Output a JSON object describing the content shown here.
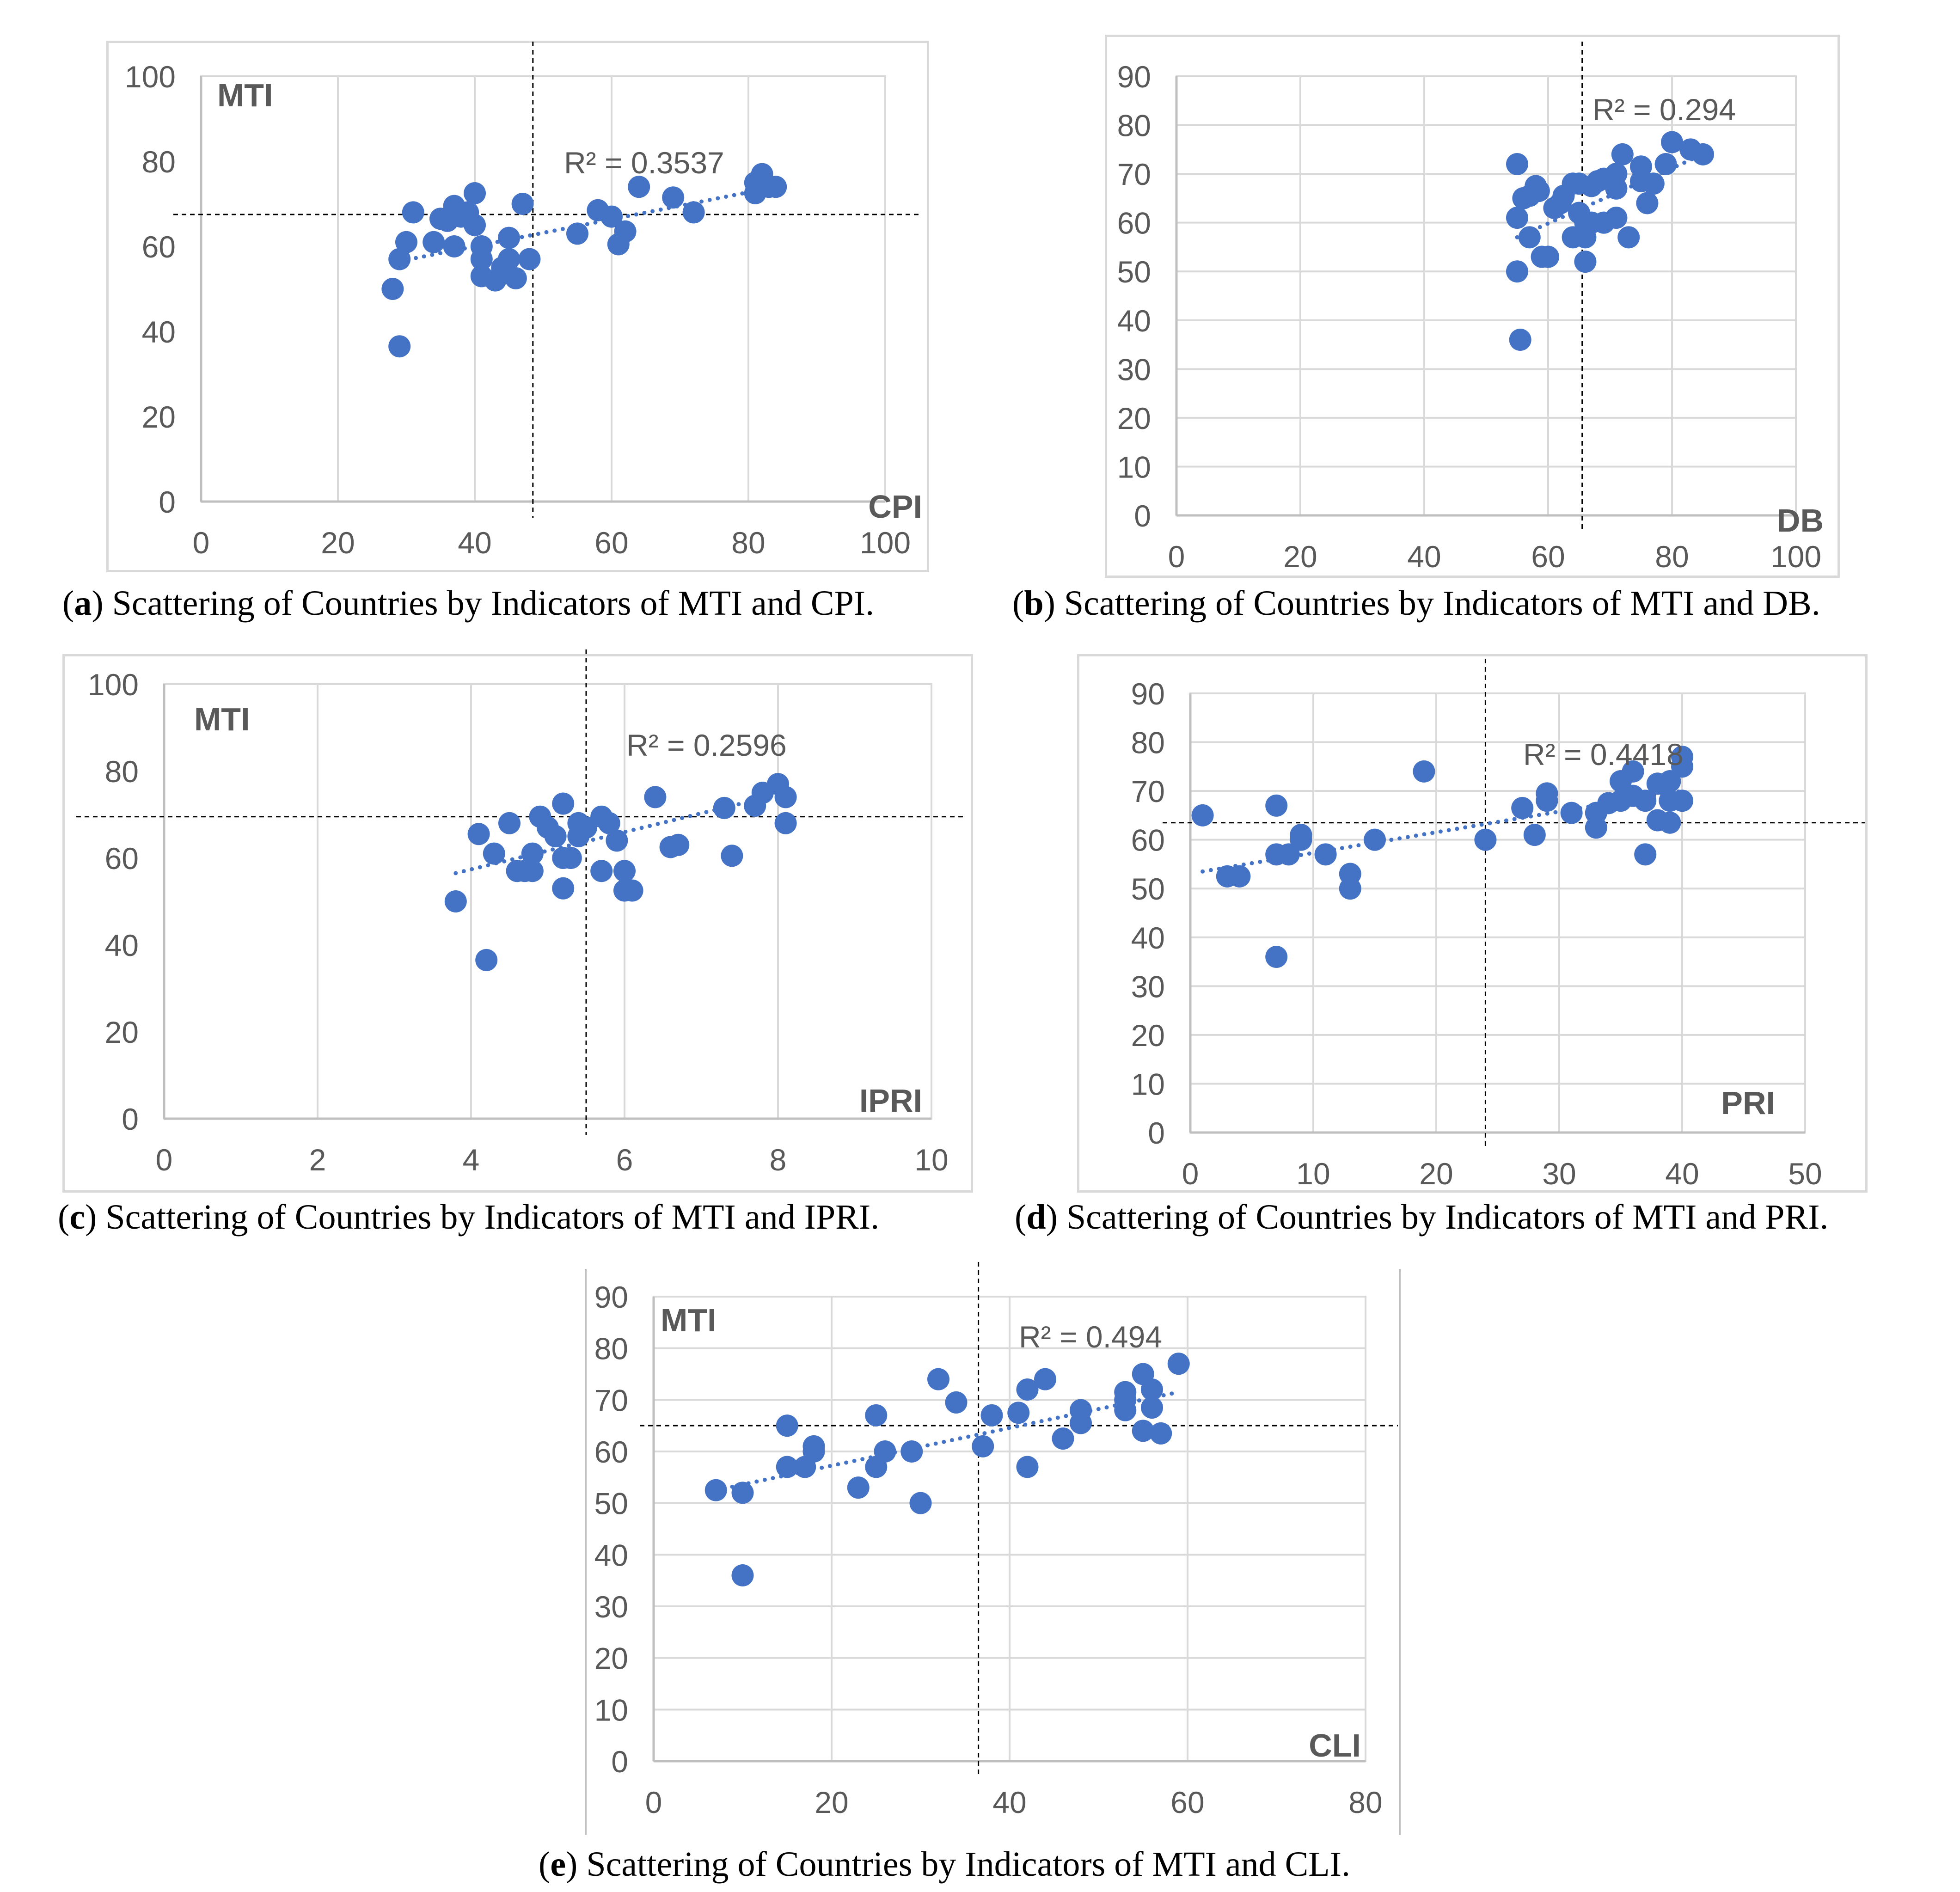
{
  "colors": {
    "point": "#4472C4",
    "grid": "#D9D9D9",
    "axis": "#BFBFBF",
    "tick_text": "#595959",
    "guide": "#000000",
    "frame": "#D9D9D9"
  },
  "chart_data": [
    {
      "id": "a",
      "type": "scatter",
      "xlabel": "CPI",
      "ylabel": "MTI",
      "r2_label": "R² = 0.3537",
      "xlim": [
        0,
        100
      ],
      "ylim": [
        0,
        100
      ],
      "xticks": [
        0,
        20,
        40,
        60,
        80,
        100
      ],
      "yticks": [
        0,
        20,
        40,
        60,
        80,
        100
      ],
      "grid": "vertical",
      "trendline": [
        29,
        56.5,
        84,
        74
      ],
      "guides": {
        "x": 48.5,
        "y": 67.5
      },
      "caption": {
        "letter": "a",
        "text": "Scattering of Countries by Indicators of MTI and CPI."
      },
      "points": [
        [
          28,
          50
        ],
        [
          29,
          36.5
        ],
        [
          29,
          57
        ],
        [
          30,
          61
        ],
        [
          31,
          68
        ],
        [
          34,
          61
        ],
        [
          35,
          66.5
        ],
        [
          36,
          66
        ],
        [
          37,
          60
        ],
        [
          37,
          69.5
        ],
        [
          38,
          67
        ],
        [
          39,
          68
        ],
        [
          40,
          72.5
        ],
        [
          40,
          65
        ],
        [
          41,
          60
        ],
        [
          41,
          57
        ],
        [
          41,
          53
        ],
        [
          43,
          52
        ],
        [
          44,
          55
        ],
        [
          45,
          62
        ],
        [
          45,
          57
        ],
        [
          46,
          52.5
        ],
        [
          47,
          70
        ],
        [
          48,
          57
        ],
        [
          55,
          63
        ],
        [
          58,
          68.5
        ],
        [
          60,
          67
        ],
        [
          61,
          60.5
        ],
        [
          62,
          63.5
        ],
        [
          64,
          74
        ],
        [
          69,
          71.5
        ],
        [
          72,
          68
        ],
        [
          81,
          72.5
        ],
        [
          81,
          75
        ],
        [
          82,
          77
        ],
        [
          83,
          74
        ],
        [
          84,
          74
        ]
      ]
    },
    {
      "id": "b",
      "type": "scatter",
      "xlabel": "DB",
      "ylabel": "",
      "r2_label": "R² = 0.294",
      "xlim": [
        0,
        100
      ],
      "ylim": [
        0,
        90
      ],
      "xticks": [
        0,
        20,
        40,
        60,
        80,
        100
      ],
      "yticks": [
        0,
        10,
        20,
        30,
        40,
        50,
        60,
        70,
        80,
        90
      ],
      "grid": "both",
      "trendline": [
        55,
        57,
        85,
        74
      ],
      "guides": {
        "x": 65.5,
        "y": null
      },
      "caption": {
        "letter": "b",
        "text": "Scattering of Countries by Indicators of MTI and DB."
      },
      "points": [
        [
          55,
          72
        ],
        [
          55,
          61
        ],
        [
          55,
          50
        ],
        [
          55.5,
          36
        ],
        [
          56,
          65
        ],
        [
          57,
          57
        ],
        [
          57,
          65.5
        ],
        [
          58,
          67.5
        ],
        [
          58.5,
          66.5
        ],
        [
          59,
          53
        ],
        [
          60,
          53
        ],
        [
          61,
          63
        ],
        [
          62,
          64
        ],
        [
          62.5,
          65.5
        ],
        [
          64,
          57
        ],
        [
          64,
          68
        ],
        [
          65,
          68
        ],
        [
          65,
          62
        ],
        [
          66,
          57
        ],
        [
          66,
          60
        ],
        [
          66,
          52
        ],
        [
          67,
          67.5
        ],
        [
          67,
          60
        ],
        [
          68,
          68.5
        ],
        [
          69,
          60
        ],
        [
          69,
          69
        ],
        [
          71,
          70
        ],
        [
          71,
          67
        ],
        [
          71,
          61
        ],
        [
          72,
          74
        ],
        [
          73,
          57
        ],
        [
          75,
          68.5
        ],
        [
          75,
          71.5
        ],
        [
          76,
          64
        ],
        [
          77,
          68
        ],
        [
          79,
          72
        ],
        [
          80,
          76.5
        ],
        [
          83,
          75
        ],
        [
          85,
          74
        ]
      ]
    },
    {
      "id": "c",
      "type": "scatter",
      "xlabel": "IPRI",
      "ylabel": "MTI",
      "r2_label": "R² = 0.2596",
      "xlim": [
        0,
        10
      ],
      "ylim": [
        0,
        100
      ],
      "xticks": [
        0,
        2,
        4,
        6,
        8,
        10
      ],
      "yticks": [
        0,
        20,
        40,
        60,
        80,
        100
      ],
      "grid": "vertical",
      "trendline": [
        3.8,
        56.5,
        8.1,
        75
      ],
      "guides": {
        "x": 5.5,
        "y": 69.5
      },
      "caption": {
        "letter": "c",
        "text": "Scattering of Countries by Indicators of MTI and IPRI."
      },
      "points": [
        [
          3.8,
          50
        ],
        [
          4.1,
          65.5
        ],
        [
          4.2,
          36.5
        ],
        [
          4.3,
          61
        ],
        [
          4.5,
          68
        ],
        [
          4.6,
          57
        ],
        [
          4.7,
          57
        ],
        [
          4.8,
          61
        ],
        [
          4.8,
          57
        ],
        [
          4.9,
          69.5
        ],
        [
          5.0,
          67
        ],
        [
          5.1,
          65
        ],
        [
          5.2,
          72.5
        ],
        [
          5.2,
          60
        ],
        [
          5.2,
          53
        ],
        [
          5.3,
          60
        ],
        [
          5.4,
          68
        ],
        [
          5.4,
          65
        ],
        [
          5.5,
          67
        ],
        [
          5.7,
          69.5
        ],
        [
          5.7,
          57
        ],
        [
          5.8,
          68
        ],
        [
          5.9,
          64
        ],
        [
          6.0,
          57
        ],
        [
          6.0,
          52.5
        ],
        [
          6.1,
          52.5
        ],
        [
          6.4,
          74
        ],
        [
          6.6,
          62.5
        ],
        [
          6.7,
          63
        ],
        [
          7.3,
          71.5
        ],
        [
          7.4,
          60.5
        ],
        [
          7.7,
          72
        ],
        [
          7.8,
          75
        ],
        [
          8.0,
          77
        ],
        [
          8.1,
          74
        ],
        [
          8.1,
          68
        ]
      ]
    },
    {
      "id": "d",
      "type": "scatter",
      "xlabel": "PRI",
      "ylabel": "",
      "r2_label": "R² = 0.4418",
      "xlim": [
        0,
        50
      ],
      "ylim": [
        0,
        90
      ],
      "xticks": [
        0,
        10,
        20,
        30,
        40,
        50
      ],
      "yticks": [
        0,
        10,
        20,
        30,
        40,
        50,
        60,
        70,
        80,
        90
      ],
      "grid": "both",
      "trendline": [
        1,
        53.5,
        40,
        70
      ],
      "guides": {
        "x": 24,
        "y": 63.5
      },
      "caption": {
        "letter": "d",
        "text": "Scattering of Countries by Indicators of MTI and PRI."
      },
      "points": [
        [
          1,
          65
        ],
        [
          3,
          52.5
        ],
        [
          4,
          52.5
        ],
        [
          7,
          67
        ],
        [
          7,
          57
        ],
        [
          7,
          36
        ],
        [
          8,
          57
        ],
        [
          9,
          61
        ],
        [
          9,
          60
        ],
        [
          11,
          57
        ],
        [
          13,
          53
        ],
        [
          13,
          50
        ],
        [
          15,
          60
        ],
        [
          19,
          74
        ],
        [
          24,
          60
        ],
        [
          27,
          66.5
        ],
        [
          28,
          61
        ],
        [
          29,
          68
        ],
        [
          29,
          69.5
        ],
        [
          31,
          65.5
        ],
        [
          33,
          65.5
        ],
        [
          33,
          62.5
        ],
        [
          34,
          67.5
        ],
        [
          35,
          72
        ],
        [
          35,
          68
        ],
        [
          36,
          74
        ],
        [
          36,
          69
        ],
        [
          37,
          68
        ],
        [
          37,
          57
        ],
        [
          38,
          71.5
        ],
        [
          38,
          64
        ],
        [
          39,
          63.5
        ],
        [
          39,
          72
        ],
        [
          39,
          68
        ],
        [
          40,
          75
        ],
        [
          40,
          77
        ],
        [
          40,
          68
        ]
      ]
    },
    {
      "id": "e",
      "type": "scatter",
      "xlabel": "CLI",
      "ylabel": "MTI",
      "r2_label": "R² = 0.494",
      "xlim": [
        0,
        80
      ],
      "ylim": [
        0,
        90
      ],
      "xticks": [
        0,
        20,
        40,
        60,
        80
      ],
      "yticks": [
        0,
        10,
        20,
        30,
        40,
        50,
        60,
        70,
        80,
        90
      ],
      "grid": "both",
      "trendline": [
        7,
        52.5,
        59,
        71.5
      ],
      "guides": {
        "x": 36.5,
        "y": 65
      },
      "caption": {
        "letter": "e",
        "text": "Scattering of Countries by Indicators of MTI and CLI."
      },
      "points": [
        [
          7,
          52.5
        ],
        [
          10,
          52
        ],
        [
          10,
          36
        ],
        [
          15,
          65
        ],
        [
          15,
          57
        ],
        [
          17,
          57
        ],
        [
          18,
          60
        ],
        [
          18,
          61
        ],
        [
          23,
          53
        ],
        [
          25,
          67
        ],
        [
          25,
          57
        ],
        [
          26,
          60
        ],
        [
          29,
          60
        ],
        [
          30,
          50
        ],
        [
          32,
          74
        ],
        [
          34,
          69.5
        ],
        [
          37,
          61
        ],
        [
          38,
          67
        ],
        [
          41,
          67.5
        ],
        [
          42,
          72
        ],
        [
          42,
          57
        ],
        [
          44,
          74
        ],
        [
          46,
          62.5
        ],
        [
          48,
          65.5
        ],
        [
          48,
          68
        ],
        [
          53,
          71.5
        ],
        [
          53,
          68
        ],
        [
          53,
          70
        ],
        [
          55,
          75
        ],
        [
          55,
          64
        ],
        [
          56,
          72
        ],
        [
          56,
          68.5
        ],
        [
          57,
          63.5
        ],
        [
          59,
          77
        ]
      ]
    }
  ]
}
